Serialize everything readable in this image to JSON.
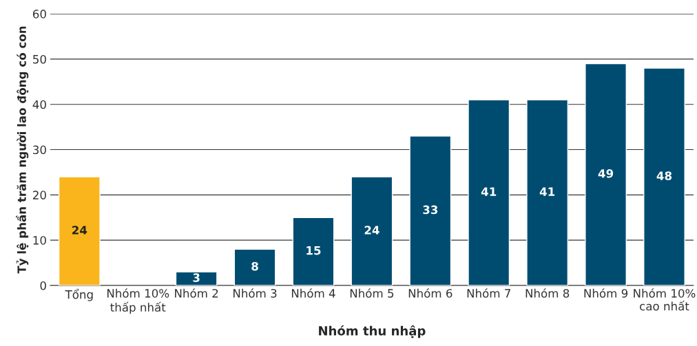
{
  "chart_data": {
    "type": "bar",
    "xlabel": "Nhóm thu nhập",
    "ylabel": "Tỷ lệ phần trăm người lao động có con",
    "categories": [
      "Tổng",
      "Nhóm 10%\nthấp nhất",
      "Nhóm 2",
      "Nhóm 3",
      "Nhóm 4",
      "Nhóm 5",
      "Nhóm 6",
      "Nhóm 7",
      "Nhóm 8",
      "Nhóm 9",
      "Nhóm 10%\ncao nhất"
    ],
    "values": [
      24,
      null,
      3,
      8,
      15,
      24,
      33,
      41,
      41,
      49,
      48
    ],
    "value_labels": [
      "24",
      null,
      "3",
      "8",
      "15",
      "24",
      "33",
      "41",
      "41",
      "49",
      "48"
    ],
    "colors": [
      "#f9b51b",
      "#004c70",
      "#004c70",
      "#004c70",
      "#004c70",
      "#004c70",
      "#004c70",
      "#004c70",
      "#004c70",
      "#004c70",
      "#004c70"
    ],
    "ylim": [
      0,
      60
    ],
    "yticks": [
      0,
      10,
      20,
      30,
      40,
      50,
      60
    ],
    "grid": "y"
  }
}
